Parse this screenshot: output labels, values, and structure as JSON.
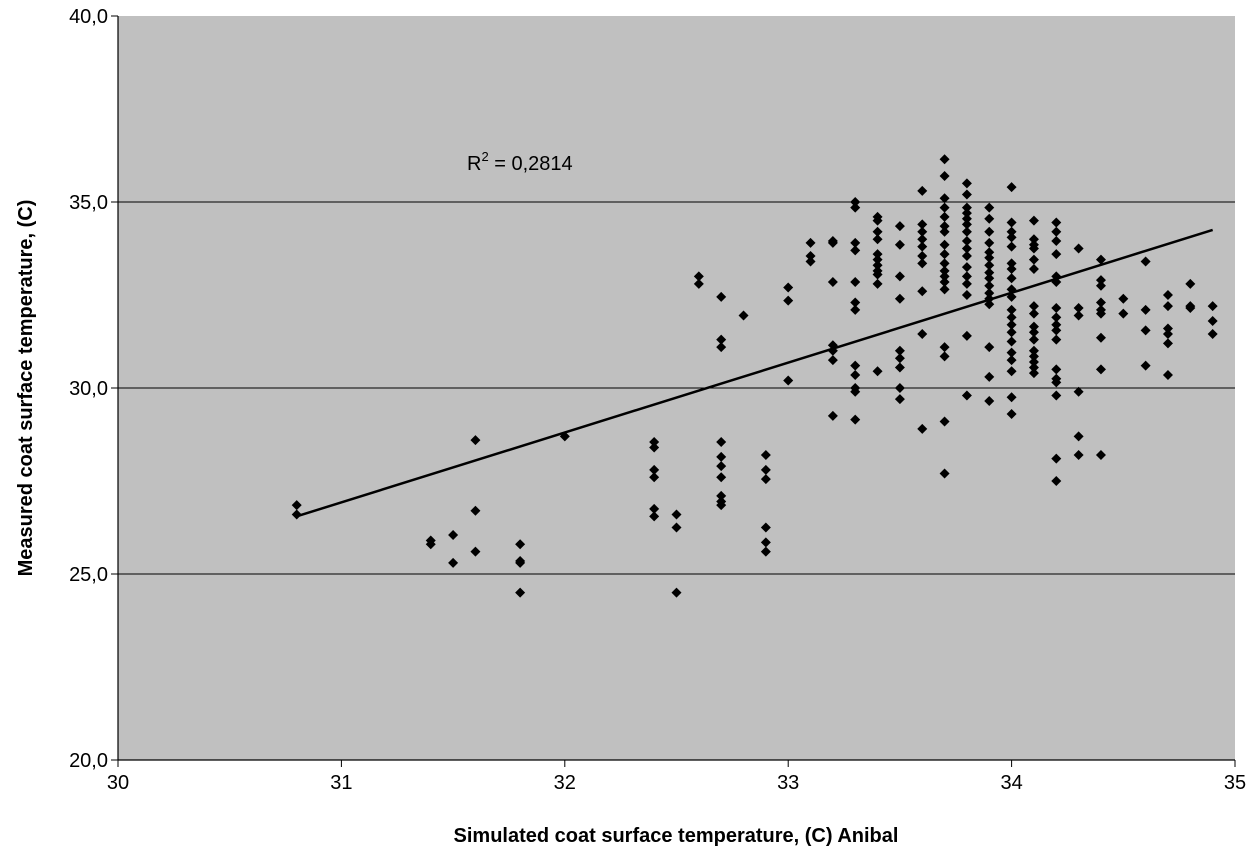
{
  "chart_data": {
    "type": "scatter",
    "title": "",
    "xlabel": "Simulated coat surface temperature, (C) Anibal",
    "ylabel": "Measured coat surface temperature, (C)",
    "xlim": [
      30,
      35
    ],
    "ylim": [
      20,
      40
    ],
    "x_ticks": [
      30,
      31,
      32,
      33,
      34,
      35
    ],
    "y_ticks": [
      20,
      25,
      30,
      35,
      40
    ],
    "x_tick_labels": [
      "30",
      "31",
      "32",
      "33",
      "34",
      "35"
    ],
    "y_tick_labels": [
      "20,0",
      "25,0",
      "30,0",
      "35,0",
      "40,0"
    ],
    "grid": "horizontal",
    "legend": "none",
    "annotation": {
      "r2_prefix": "R",
      "r2_sup": "2",
      "r2_value": " = 0,2814"
    },
    "trendline": {
      "x": [
        30.8,
        34.9
      ],
      "y": [
        26.55,
        34.25
      ]
    },
    "colors": {
      "plot_bg": "#c0c0c0",
      "marker": "#000000",
      "gridline": "#000000"
    },
    "series": [
      {
        "marker": "diamond",
        "points": [
          [
            30.8,
            26.85
          ],
          [
            30.8,
            26.6
          ],
          [
            31.4,
            25.9
          ],
          [
            31.4,
            25.8
          ],
          [
            31.5,
            26.05
          ],
          [
            31.5,
            25.3
          ],
          [
            31.6,
            28.6
          ],
          [
            31.6,
            26.7
          ],
          [
            31.6,
            25.6
          ],
          [
            31.8,
            25.8
          ],
          [
            31.8,
            25.35
          ],
          [
            31.8,
            25.3
          ],
          [
            31.8,
            24.5
          ],
          [
            32.0,
            28.7
          ],
          [
            32.4,
            28.55
          ],
          [
            32.4,
            28.4
          ],
          [
            32.4,
            27.8
          ],
          [
            32.4,
            27.6
          ],
          [
            32.4,
            26.75
          ],
          [
            32.4,
            26.55
          ],
          [
            32.5,
            26.6
          ],
          [
            32.5,
            26.25
          ],
          [
            32.5,
            24.5
          ],
          [
            32.6,
            33.0
          ],
          [
            32.6,
            32.8
          ],
          [
            32.7,
            32.45
          ],
          [
            32.7,
            31.3
          ],
          [
            32.7,
            31.1
          ],
          [
            32.7,
            28.55
          ],
          [
            32.7,
            28.15
          ],
          [
            32.7,
            27.9
          ],
          [
            32.7,
            27.6
          ],
          [
            32.7,
            27.1
          ],
          [
            32.7,
            26.95
          ],
          [
            32.7,
            26.85
          ],
          [
            32.8,
            31.95
          ],
          [
            32.9,
            28.2
          ],
          [
            32.9,
            27.8
          ],
          [
            32.9,
            27.55
          ],
          [
            32.9,
            26.25
          ],
          [
            32.9,
            25.85
          ],
          [
            32.9,
            25.6
          ],
          [
            33.0,
            32.7
          ],
          [
            33.0,
            32.35
          ],
          [
            33.0,
            30.2
          ],
          [
            33.1,
            33.9
          ],
          [
            33.1,
            33.55
          ],
          [
            33.1,
            33.4
          ],
          [
            33.2,
            33.95
          ],
          [
            33.2,
            33.9
          ],
          [
            33.2,
            32.85
          ],
          [
            33.2,
            31.15
          ],
          [
            33.2,
            31.0
          ],
          [
            33.2,
            30.75
          ],
          [
            33.2,
            29.25
          ],
          [
            33.3,
            35.0
          ],
          [
            33.3,
            34.85
          ],
          [
            33.3,
            33.9
          ],
          [
            33.3,
            33.7
          ],
          [
            33.3,
            32.85
          ],
          [
            33.3,
            32.3
          ],
          [
            33.3,
            32.1
          ],
          [
            33.3,
            30.6
          ],
          [
            33.3,
            30.35
          ],
          [
            33.3,
            30.0
          ],
          [
            33.3,
            29.9
          ],
          [
            33.3,
            29.15
          ],
          [
            33.4,
            34.6
          ],
          [
            33.4,
            34.5
          ],
          [
            33.4,
            34.2
          ],
          [
            33.4,
            34.0
          ],
          [
            33.4,
            33.6
          ],
          [
            33.4,
            33.45
          ],
          [
            33.4,
            33.3
          ],
          [
            33.4,
            33.15
          ],
          [
            33.4,
            33.05
          ],
          [
            33.4,
            32.8
          ],
          [
            33.4,
            30.45
          ],
          [
            33.5,
            34.35
          ],
          [
            33.5,
            33.85
          ],
          [
            33.5,
            33.0
          ],
          [
            33.5,
            32.4
          ],
          [
            33.5,
            31.0
          ],
          [
            33.5,
            30.8
          ],
          [
            33.5,
            30.55
          ],
          [
            33.5,
            30.0
          ],
          [
            33.5,
            29.7
          ],
          [
            33.6,
            35.3
          ],
          [
            33.6,
            34.4
          ],
          [
            33.6,
            34.2
          ],
          [
            33.6,
            34.0
          ],
          [
            33.6,
            33.8
          ],
          [
            33.6,
            33.55
          ],
          [
            33.6,
            33.35
          ],
          [
            33.6,
            32.6
          ],
          [
            33.6,
            31.45
          ],
          [
            33.6,
            28.9
          ],
          [
            33.7,
            36.15
          ],
          [
            33.7,
            35.7
          ],
          [
            33.7,
            35.1
          ],
          [
            33.7,
            34.85
          ],
          [
            33.7,
            34.6
          ],
          [
            33.7,
            34.35
          ],
          [
            33.7,
            34.2
          ],
          [
            33.7,
            33.85
          ],
          [
            33.7,
            33.6
          ],
          [
            33.7,
            33.35
          ],
          [
            33.7,
            33.15
          ],
          [
            33.7,
            33.0
          ],
          [
            33.7,
            32.85
          ],
          [
            33.7,
            32.65
          ],
          [
            33.7,
            31.1
          ],
          [
            33.7,
            30.85
          ],
          [
            33.7,
            29.1
          ],
          [
            33.7,
            27.7
          ],
          [
            33.8,
            35.5
          ],
          [
            33.8,
            35.2
          ],
          [
            33.8,
            34.85
          ],
          [
            33.8,
            34.7
          ],
          [
            33.8,
            34.55
          ],
          [
            33.8,
            34.4
          ],
          [
            33.8,
            34.2
          ],
          [
            33.8,
            33.95
          ],
          [
            33.8,
            33.75
          ],
          [
            33.8,
            33.55
          ],
          [
            33.8,
            33.25
          ],
          [
            33.8,
            33.0
          ],
          [
            33.8,
            32.8
          ],
          [
            33.8,
            32.5
          ],
          [
            33.8,
            31.4
          ],
          [
            33.8,
            29.8
          ],
          [
            33.9,
            34.85
          ],
          [
            33.9,
            34.55
          ],
          [
            33.9,
            34.2
          ],
          [
            33.9,
            33.9
          ],
          [
            33.9,
            33.65
          ],
          [
            33.9,
            33.5
          ],
          [
            33.9,
            33.3
          ],
          [
            33.9,
            33.1
          ],
          [
            33.9,
            32.95
          ],
          [
            33.9,
            32.75
          ],
          [
            33.9,
            32.55
          ],
          [
            33.9,
            32.4
          ],
          [
            33.9,
            32.25
          ],
          [
            33.9,
            31.1
          ],
          [
            33.9,
            30.3
          ],
          [
            33.9,
            29.65
          ],
          [
            34.0,
            35.4
          ],
          [
            34.0,
            34.45
          ],
          [
            34.0,
            34.2
          ],
          [
            34.0,
            34.05
          ],
          [
            34.0,
            33.8
          ],
          [
            34.0,
            33.35
          ],
          [
            34.0,
            33.2
          ],
          [
            34.0,
            32.95
          ],
          [
            34.0,
            32.65
          ],
          [
            34.0,
            32.45
          ],
          [
            34.0,
            32.1
          ],
          [
            34.0,
            31.9
          ],
          [
            34.0,
            31.7
          ],
          [
            34.0,
            31.5
          ],
          [
            34.0,
            31.25
          ],
          [
            34.0,
            30.95
          ],
          [
            34.0,
            30.75
          ],
          [
            34.0,
            30.45
          ],
          [
            34.0,
            29.75
          ],
          [
            34.0,
            29.3
          ],
          [
            34.1,
            34.5
          ],
          [
            34.1,
            34.0
          ],
          [
            34.1,
            33.85
          ],
          [
            34.1,
            33.75
          ],
          [
            34.1,
            33.45
          ],
          [
            34.1,
            33.2
          ],
          [
            34.1,
            32.2
          ],
          [
            34.1,
            32.0
          ],
          [
            34.1,
            31.65
          ],
          [
            34.1,
            31.5
          ],
          [
            34.1,
            31.3
          ],
          [
            34.1,
            31.0
          ],
          [
            34.1,
            30.85
          ],
          [
            34.1,
            30.7
          ],
          [
            34.1,
            30.55
          ],
          [
            34.1,
            30.4
          ],
          [
            34.2,
            34.45
          ],
          [
            34.2,
            34.2
          ],
          [
            34.2,
            33.95
          ],
          [
            34.2,
            33.6
          ],
          [
            34.2,
            33.0
          ],
          [
            34.2,
            32.85
          ],
          [
            34.2,
            32.15
          ],
          [
            34.2,
            31.9
          ],
          [
            34.2,
            31.7
          ],
          [
            34.2,
            31.55
          ],
          [
            34.2,
            31.3
          ],
          [
            34.2,
            30.5
          ],
          [
            34.2,
            30.25
          ],
          [
            34.2,
            30.15
          ],
          [
            34.2,
            29.8
          ],
          [
            34.2,
            28.1
          ],
          [
            34.2,
            27.5
          ],
          [
            34.3,
            33.75
          ],
          [
            34.3,
            32.15
          ],
          [
            34.3,
            31.95
          ],
          [
            34.3,
            29.9
          ],
          [
            34.3,
            28.7
          ],
          [
            34.3,
            28.2
          ],
          [
            34.4,
            33.45
          ],
          [
            34.4,
            32.9
          ],
          [
            34.4,
            32.75
          ],
          [
            34.4,
            32.3
          ],
          [
            34.4,
            32.1
          ],
          [
            34.4,
            32.0
          ],
          [
            34.4,
            31.35
          ],
          [
            34.4,
            30.5
          ],
          [
            34.4,
            28.2
          ],
          [
            34.5,
            32.4
          ],
          [
            34.5,
            32.0
          ],
          [
            34.6,
            33.4
          ],
          [
            34.6,
            32.1
          ],
          [
            34.6,
            31.55
          ],
          [
            34.6,
            30.6
          ],
          [
            34.7,
            32.5
          ],
          [
            34.7,
            32.2
          ],
          [
            34.7,
            31.6
          ],
          [
            34.7,
            31.45
          ],
          [
            34.7,
            31.2
          ],
          [
            34.7,
            30.35
          ],
          [
            34.8,
            32.8
          ],
          [
            34.8,
            32.2
          ],
          [
            34.8,
            32.15
          ],
          [
            34.9,
            32.2
          ],
          [
            34.9,
            31.8
          ],
          [
            34.9,
            31.45
          ]
        ]
      }
    ]
  }
}
